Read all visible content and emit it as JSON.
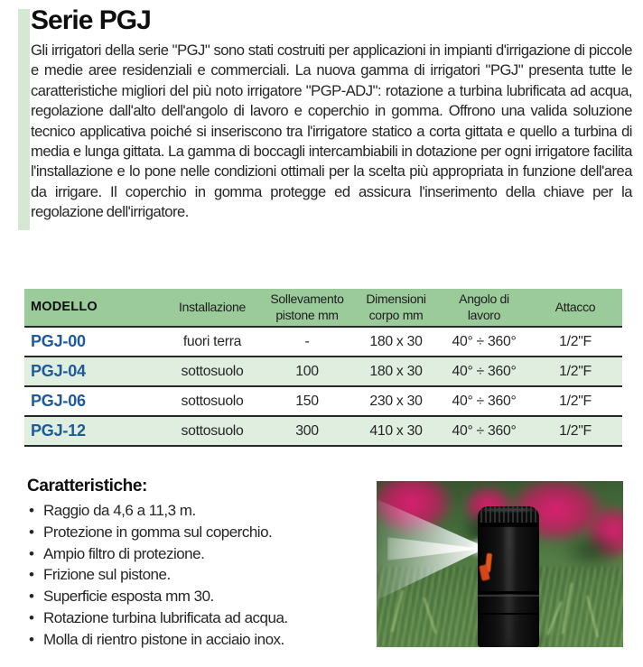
{
  "colors": {
    "header_green": "#9bcb9b",
    "row_green": "#dfeede",
    "bar_green": "#d5e8d2",
    "model_blue": "#1c5a9c"
  },
  "page": {
    "title": "Serie PGJ",
    "intro": "Gli irrigatori della serie \"PGJ\" sono stati costruiti per applicazioni in impianti d'irrigazione di piccole e medie aree residenziali e commerciali. La nuova gamma di irrigatori \"PGJ\" presenta tutte le caratteristiche migliori del più noto irrigatore \"PGP-ADJ\": rotazione a turbina lubrificata ad acqua, regolazione dall'alto dell'angolo di lavoro e coperchio in gomma. Offrono una valida soluzione tecnico applicativa poiché si inseriscono tra l'irrigatore statico a corta gittata e quello a turbina di media e lunga gittata. La gamma di boccagli intercambiabili in dotazione per ogni irrigatore facilita l'installazione e lo pone nelle condizioni ottimali per la scelta più appropriata in funzione dell'area da irrigare. Il coperchio in gomma protegge ed assicura l'inserimento della chiave per la regolazione dell'irrigatore."
  },
  "table": {
    "headers": [
      "MODELLO",
      "Installazione",
      "Sollevamento pistone mm",
      "Dimensioni corpo mm",
      "Angolo di lavoro",
      "Attacco"
    ],
    "rows": [
      [
        "PGJ-00",
        "fuori terra",
        "-",
        "180 x 30",
        "40° ÷ 360°",
        "1/2\"F"
      ],
      [
        "PGJ-04",
        "sottosuolo",
        "100",
        "180 x 30",
        "40° ÷ 360°",
        "1/2\"F"
      ],
      [
        "PGJ-06",
        "sottosuolo",
        "150",
        "230 x 30",
        "40° ÷ 360°",
        "1/2\"F"
      ],
      [
        "PGJ-12",
        "sottosuolo",
        "300",
        "410 x 30",
        "40° ÷ 360°",
        "1/2\"F"
      ]
    ]
  },
  "features": {
    "heading": "Caratteristiche:",
    "items": [
      "Raggio da 4,6 a 11,3 m.",
      "Protezione in gomma sul coperchio.",
      "Ampio filtro di protezione.",
      "Frizione sul pistone.",
      "Superficie esposta mm 30.",
      "Rotazione turbina lubrificata ad acqua.",
      "Molla di rientro pistone in acciaio inox."
    ]
  }
}
